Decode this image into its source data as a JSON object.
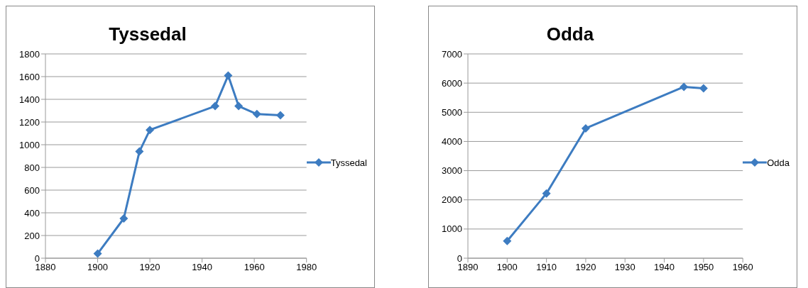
{
  "chart_data": [
    {
      "type": "line",
      "title": "Tyssedal",
      "x": [
        1900,
        1910,
        1916,
        1920,
        1945,
        1950,
        1954,
        1961,
        1970
      ],
      "series": [
        {
          "name": "Tyssedal",
          "color": "#3d7cc1",
          "values": [
            40,
            350,
            940,
            1130,
            1340,
            1610,
            1340,
            1270,
            1260
          ]
        }
      ],
      "xlim": [
        1880,
        1980
      ],
      "xticks": [
        1880,
        1900,
        1920,
        1940,
        1960,
        1980
      ],
      "ylim": [
        0,
        1800
      ],
      "yticks": [
        0,
        200,
        400,
        600,
        800,
        1000,
        1200,
        1400,
        1600,
        1800
      ],
      "grid": "y",
      "legend": "right",
      "marker": "diamond",
      "line_style": "solid"
    },
    {
      "type": "line",
      "title": "Odda",
      "x": [
        1900,
        1910,
        1920,
        1945,
        1950
      ],
      "series": [
        {
          "name": "Odda",
          "color": "#3d7cc1",
          "values": [
            590,
            2220,
            4450,
            5870,
            5820
          ]
        }
      ],
      "xlim": [
        1890,
        1960
      ],
      "xticks": [
        1890,
        1900,
        1910,
        1920,
        1930,
        1940,
        1950,
        1960
      ],
      "ylim": [
        0,
        7000
      ],
      "yticks": [
        0,
        1000,
        2000,
        3000,
        4000,
        5000,
        6000,
        7000
      ],
      "grid": "y",
      "legend": "right",
      "marker": "diamond",
      "line_style": "solid"
    }
  ]
}
